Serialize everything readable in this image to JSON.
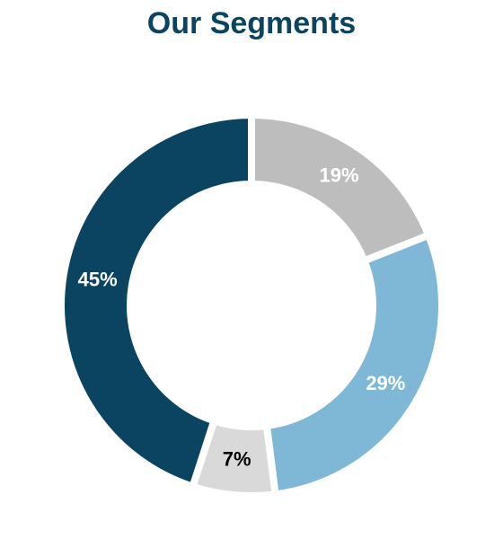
{
  "chart_data": {
    "type": "donut",
    "title": "Our Segments",
    "values": [
      19,
      29,
      7,
      45
    ],
    "value_labels": [
      "19%",
      "29%",
      "7%",
      "45%"
    ],
    "colors": [
      "#bdbdbd",
      "#7fb8d6",
      "#d9d9d9",
      "#0a4460"
    ]
  }
}
